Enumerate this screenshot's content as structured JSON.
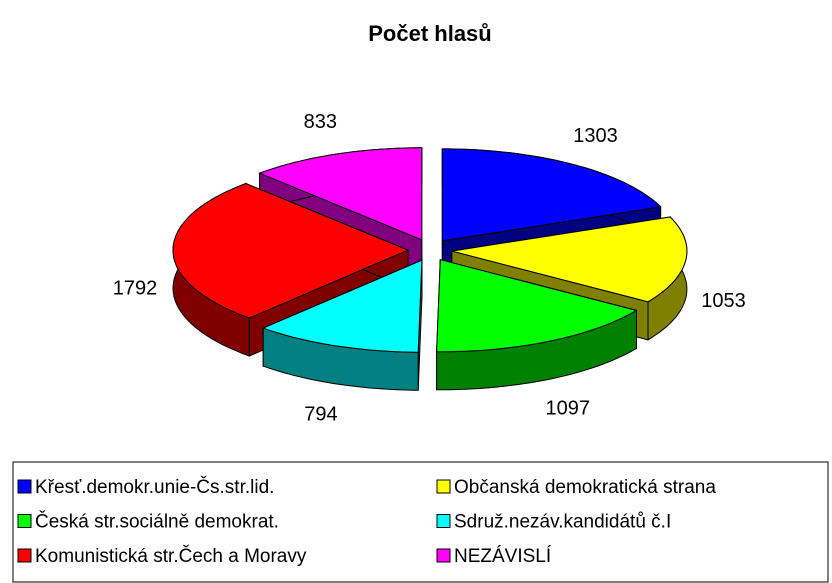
{
  "chart_data": {
    "type": "pie",
    "title": "Počet hlasů",
    "categories": [
      "Křesť.demokr.unie-Čs.str.lid.",
      "Občanská demokratická strana",
      "Česká str.sociálně demokrat.",
      "Sdruž.nezáv.kandidátů č.I",
      "Komunistická str.Čech a Moravy",
      "NEZÁVISLÍ"
    ],
    "values": [
      1303,
      1053,
      1097,
      794,
      1792,
      833
    ],
    "colors": [
      "#0000ff",
      "#ffff00",
      "#00ff00",
      "#00ffff",
      "#ff0000",
      "#ff00ff"
    ],
    "legend": "bottom"
  }
}
